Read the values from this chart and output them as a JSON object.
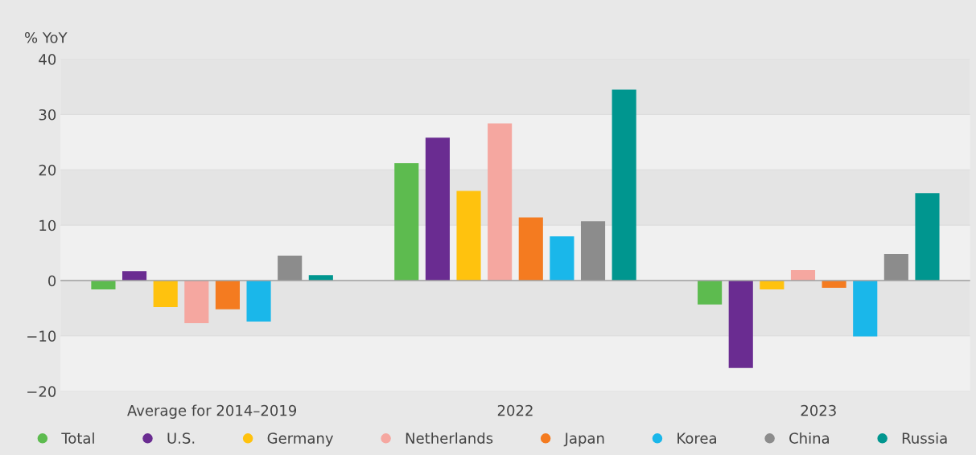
{
  "chart_data": {
    "type": "bar",
    "ylabel": "% YoY",
    "categories": [
      "Average for 2014–2019",
      "2022",
      "2023"
    ],
    "series": [
      {
        "name": "Total",
        "color": "#5dbb4f",
        "values": [
          -1.6,
          21.2,
          -4.3
        ]
      },
      {
        "name": "U.S.",
        "color": "#6a2c91",
        "values": [
          1.7,
          25.8,
          -15.8
        ]
      },
      {
        "name": "Germany",
        "color": "#ffc20e",
        "values": [
          -4.8,
          16.2,
          -1.6
        ]
      },
      {
        "name": "Netherlands",
        "color": "#f5a7a0",
        "values": [
          -7.7,
          28.4,
          1.9
        ]
      },
      {
        "name": "Japan",
        "color": "#f47b20",
        "values": [
          -5.2,
          11.4,
          -1.3
        ]
      },
      {
        "name": "Korea",
        "color": "#1ab7ea",
        "values": [
          -7.4,
          8.0,
          -10.1
        ]
      },
      {
        "name": "China",
        "color": "#8c8c8c",
        "values": [
          4.5,
          10.7,
          4.8
        ]
      },
      {
        "name": "Russia",
        "color": "#00968f",
        "values": [
          1.0,
          34.5,
          15.8
        ]
      }
    ],
    "ylim": [
      -20,
      40
    ],
    "yticks": [
      {
        "value": -20,
        "label": "−20"
      },
      {
        "value": -10,
        "label": "−10"
      },
      0,
      10,
      20,
      30,
      40
    ],
    "grid": "y",
    "legend": "bottom"
  }
}
